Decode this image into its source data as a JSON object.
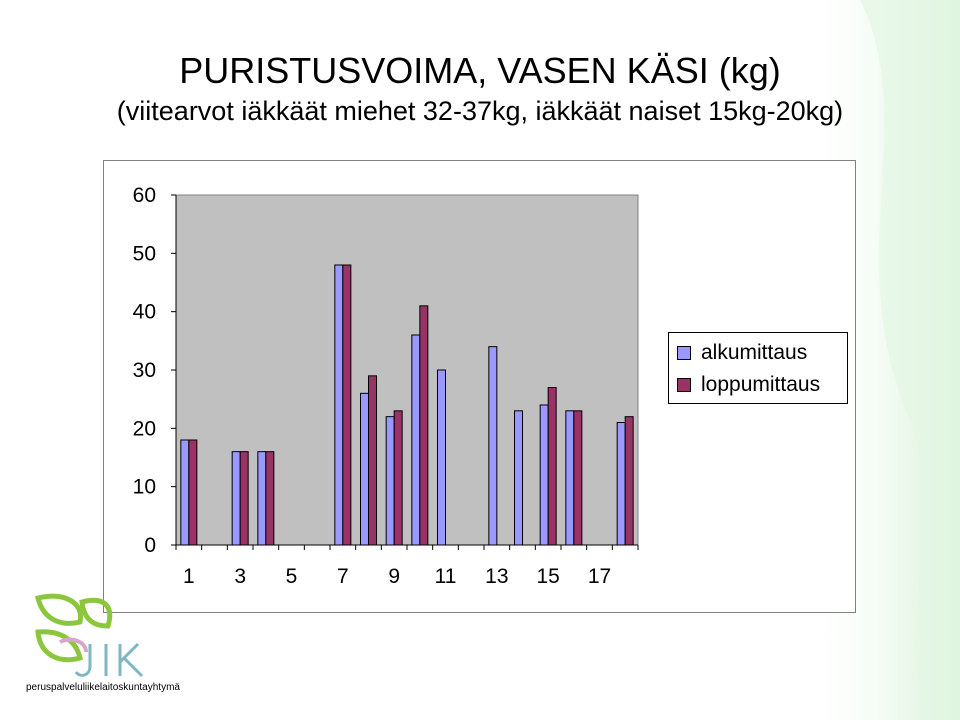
{
  "slide": {
    "title": "PURISTUSVOIMA, VASEN KÄSI  (kg)",
    "subtitle": "(viitearvot iäkkäät miehet 32-37kg, iäkkäät naiset 15kg-20kg)"
  },
  "logo": {
    "text": "JIK",
    "tagline": "peruspalveluliikelaitoskuntayhtymä"
  },
  "chart_data": {
    "type": "bar",
    "title": "",
    "xlabel": "",
    "ylabel": "",
    "ylim": [
      0,
      60
    ],
    "yticks": [
      0,
      10,
      20,
      30,
      40,
      50,
      60
    ],
    "categories": [
      "1",
      "2",
      "3",
      "4",
      "5",
      "6",
      "7",
      "8",
      "9",
      "10",
      "11",
      "12",
      "13",
      "14",
      "15",
      "16",
      "17",
      "18"
    ],
    "xtick_labels": [
      "1",
      "3",
      "5",
      "7",
      "9",
      "11",
      "13",
      "15",
      "17"
    ],
    "grid": false,
    "legend_position": "right",
    "plot_background": "#c0c0c0",
    "series": [
      {
        "name": "alkumittaus",
        "color": "#9999ff",
        "values": [
          18,
          null,
          16,
          16,
          null,
          null,
          48,
          26,
          22,
          36,
          30,
          null,
          34,
          23,
          24,
          23,
          null,
          21
        ]
      },
      {
        "name": "loppumittaus",
        "color": "#993366",
        "values": [
          18,
          null,
          16,
          16,
          null,
          null,
          48,
          29,
          23,
          41,
          null,
          null,
          null,
          null,
          27,
          23,
          null,
          22
        ]
      }
    ]
  }
}
